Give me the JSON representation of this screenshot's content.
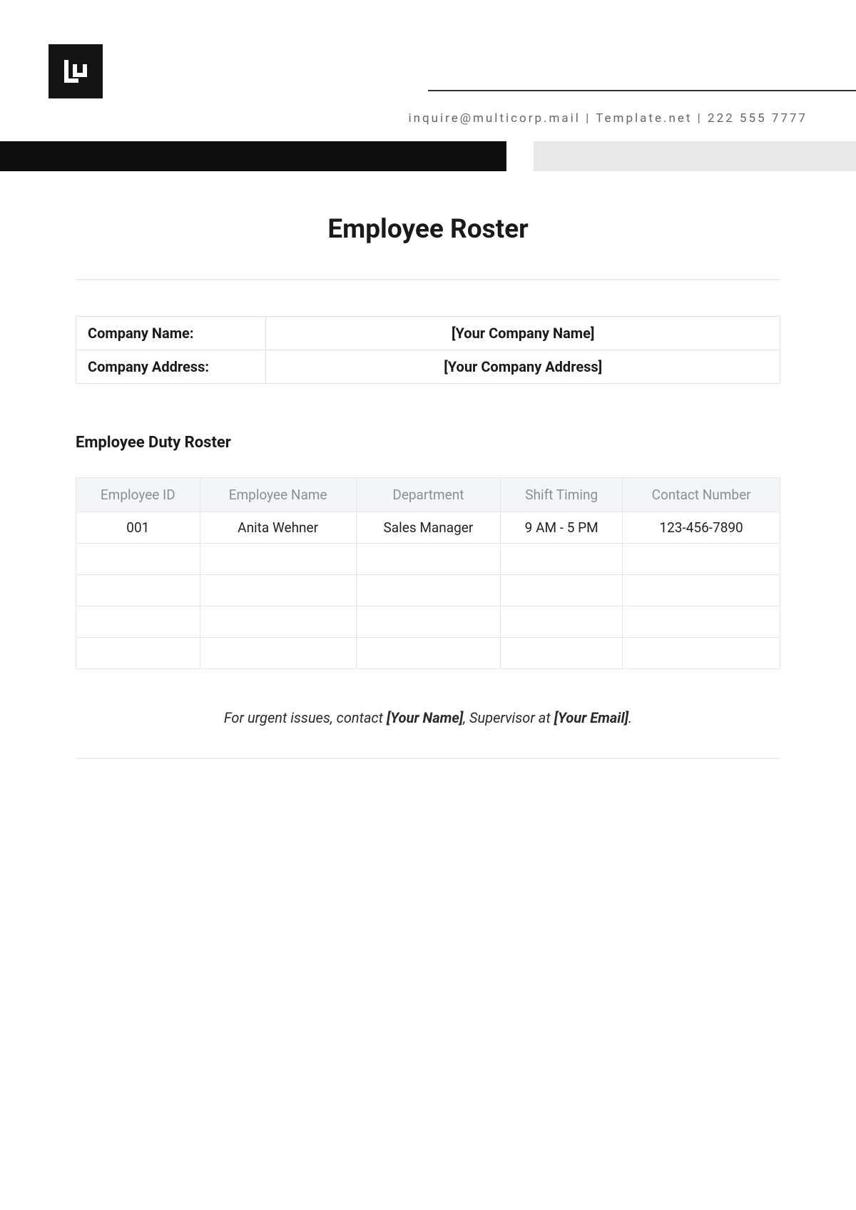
{
  "colors": {
    "black": "#0f0f0f",
    "logo_bg": "#141414",
    "grey_bar": "#e8e8e8",
    "text_primary": "#1a1a1a",
    "text_secondary": "#666666",
    "border": "#e0e0e0",
    "table_border": "#e5e7ea",
    "table_header_bg": "#f3f5f7",
    "table_header_text": "#8a8f95",
    "hr": "#ececec",
    "background": "#ffffff"
  },
  "header": {
    "contact_email": "inquire@multicorp.mail",
    "contact_site": "Template.net",
    "contact_phone": "222 555 7777",
    "sep": " | "
  },
  "title": "Employee Roster",
  "company": {
    "name_label": "Company Name:",
    "name_value": "[Your Company Name]",
    "address_label": "Company Address:",
    "address_value": "[Your Company Address]"
  },
  "section_title": "Employee Duty Roster",
  "roster": {
    "columns": [
      "Employee ID",
      "Employee Name",
      "Department",
      "Shift Timing",
      "Contact Number"
    ],
    "rows": [
      [
        "001",
        "Anita Wehner",
        "Sales Manager",
        "9 AM - 5 PM",
        "123-456-7890"
      ],
      [
        "",
        "",
        "",
        "",
        ""
      ],
      [
        "",
        "",
        "",
        "",
        ""
      ],
      [
        "",
        "",
        "",
        "",
        ""
      ],
      [
        "",
        "",
        "",
        "",
        ""
      ]
    ]
  },
  "footer": {
    "prefix": "For urgent issues, contact ",
    "name": "[Your Name]",
    "mid": ", Supervisor at ",
    "email": "[Your Email]",
    "suffix": "."
  }
}
